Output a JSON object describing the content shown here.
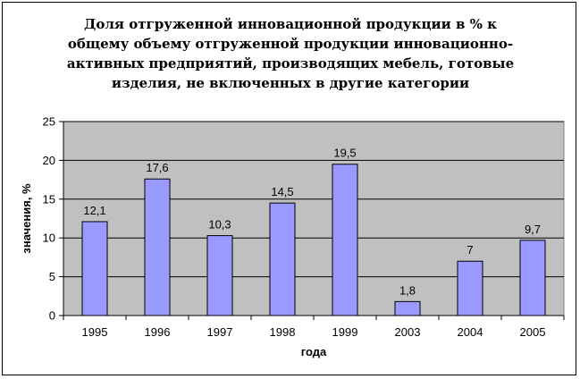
{
  "chart_data": {
    "type": "bar",
    "title": "Доля отгруженной инновационной продукции в % к общему объему отгруженной продукции инновационно-активных предприятий, производящих мебель, готовые изделия, не включенных в другие категории",
    "xlabel": "года",
    "ylabel": "значения, %",
    "categories": [
      "1995",
      "1996",
      "1997",
      "1998",
      "1999",
      "2003",
      "2004",
      "2005"
    ],
    "values": [
      12.1,
      17.6,
      10.3,
      14.5,
      19.5,
      1.8,
      7,
      9.7
    ],
    "value_labels": [
      "12,1",
      "17,6",
      "10,3",
      "14,5",
      "19,5",
      "1,8",
      "7",
      "9,7"
    ],
    "ylim": [
      0,
      25
    ],
    "yticks": [
      0,
      5,
      10,
      15,
      20,
      25
    ],
    "grid": true,
    "legend": "none",
    "colors": {
      "bar_fill": "#9999ff",
      "bar_stroke": "#000000",
      "plot_background": "#c0c0c0",
      "gridline": "#000000"
    }
  }
}
